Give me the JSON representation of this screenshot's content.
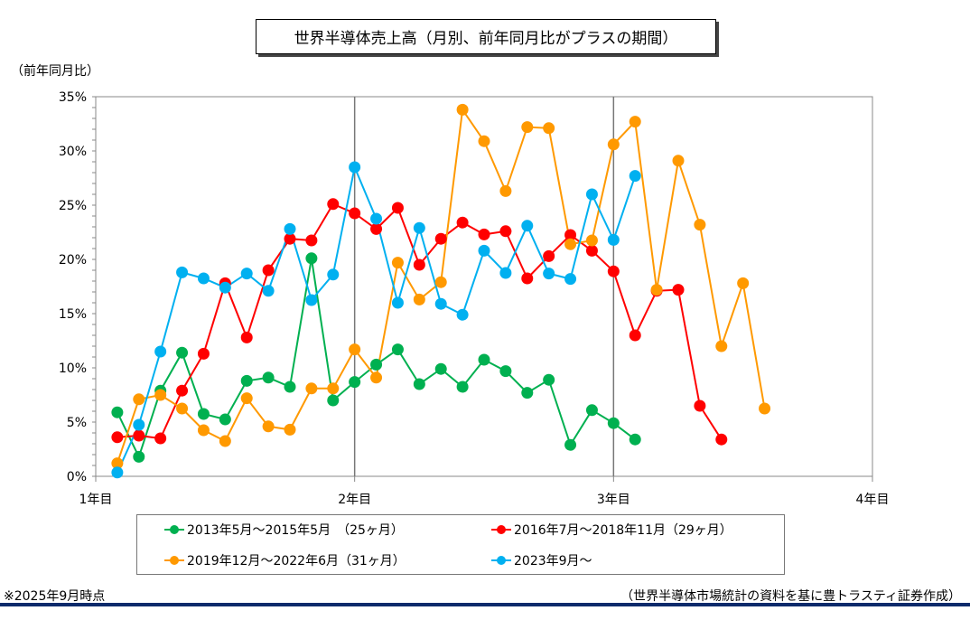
{
  "chart_data": {
    "type": "line",
    "title": "世界半導体売上高（月別、前年同月比がプラスの期間）",
    "ylabel": "（前年同月比）",
    "xlabel": "",
    "x_ticks": [
      "1年目",
      "2年目",
      "3年目",
      "4年目"
    ],
    "y_ticks": [
      "0%",
      "5%",
      "10%",
      "15%",
      "20%",
      "25%",
      "30%",
      "35%"
    ],
    "ylim": [
      0,
      35
    ],
    "xlim_months": [
      0,
      36
    ],
    "x_unit": "months from start (month 1 = first month)",
    "grid": "vertical lines at 2年目 and 3年目",
    "legend_position": "bottom",
    "series": [
      {
        "name": "2013年5月～2015年5月　（25ヶ月）",
        "color": "#00b050",
        "values": [
          5.9,
          1.8,
          7.9,
          11.4,
          5.75,
          5.25,
          8.8,
          9.1,
          8.25,
          20.1,
          7.0,
          8.7,
          10.3,
          11.7,
          8.5,
          9.9,
          8.25,
          10.75,
          9.7,
          7.7,
          8.9,
          2.9,
          6.1,
          4.9,
          3.4
        ]
      },
      {
        "name": "2016年7月～2018年11月（29ヶ月）",
        "color": "#ff0000",
        "values": [
          3.6,
          3.75,
          3.5,
          7.9,
          11.3,
          17.8,
          12.8,
          19.0,
          21.9,
          21.75,
          25.1,
          24.25,
          22.8,
          24.75,
          19.5,
          21.9,
          23.4,
          22.3,
          22.6,
          18.25,
          20.3,
          22.25,
          20.8,
          18.9,
          13.0,
          17.1,
          17.2,
          6.5,
          3.4
        ]
      },
      {
        "name": "2019年12月～2022年6月（31ヶ月）",
        "color": "#ff9900",
        "values": [
          1.2,
          7.1,
          7.5,
          6.25,
          4.25,
          3.25,
          7.2,
          4.6,
          4.3,
          8.1,
          8.1,
          11.7,
          9.1,
          19.7,
          16.3,
          17.9,
          33.8,
          30.9,
          26.3,
          32.2,
          32.1,
          21.4,
          21.75,
          30.6,
          32.7,
          17.2,
          29.1,
          23.2,
          12.0,
          17.8,
          6.25
        ]
      },
      {
        "name": "2023年9月～",
        "color": "#00b0f0",
        "values": [
          0.35,
          4.75,
          11.5,
          18.8,
          18.25,
          17.4,
          18.7,
          17.1,
          22.8,
          16.25,
          18.6,
          28.5,
          23.75,
          16.0,
          22.9,
          15.9,
          14.9,
          20.8,
          18.75,
          23.1,
          18.7,
          18.2,
          26.0,
          21.8,
          27.7
        ]
      }
    ]
  },
  "footer": {
    "note": "※2025年9月時点",
    "source": "（世界半導体市場統計の資料を基に豊トラスティ証券作成）"
  }
}
